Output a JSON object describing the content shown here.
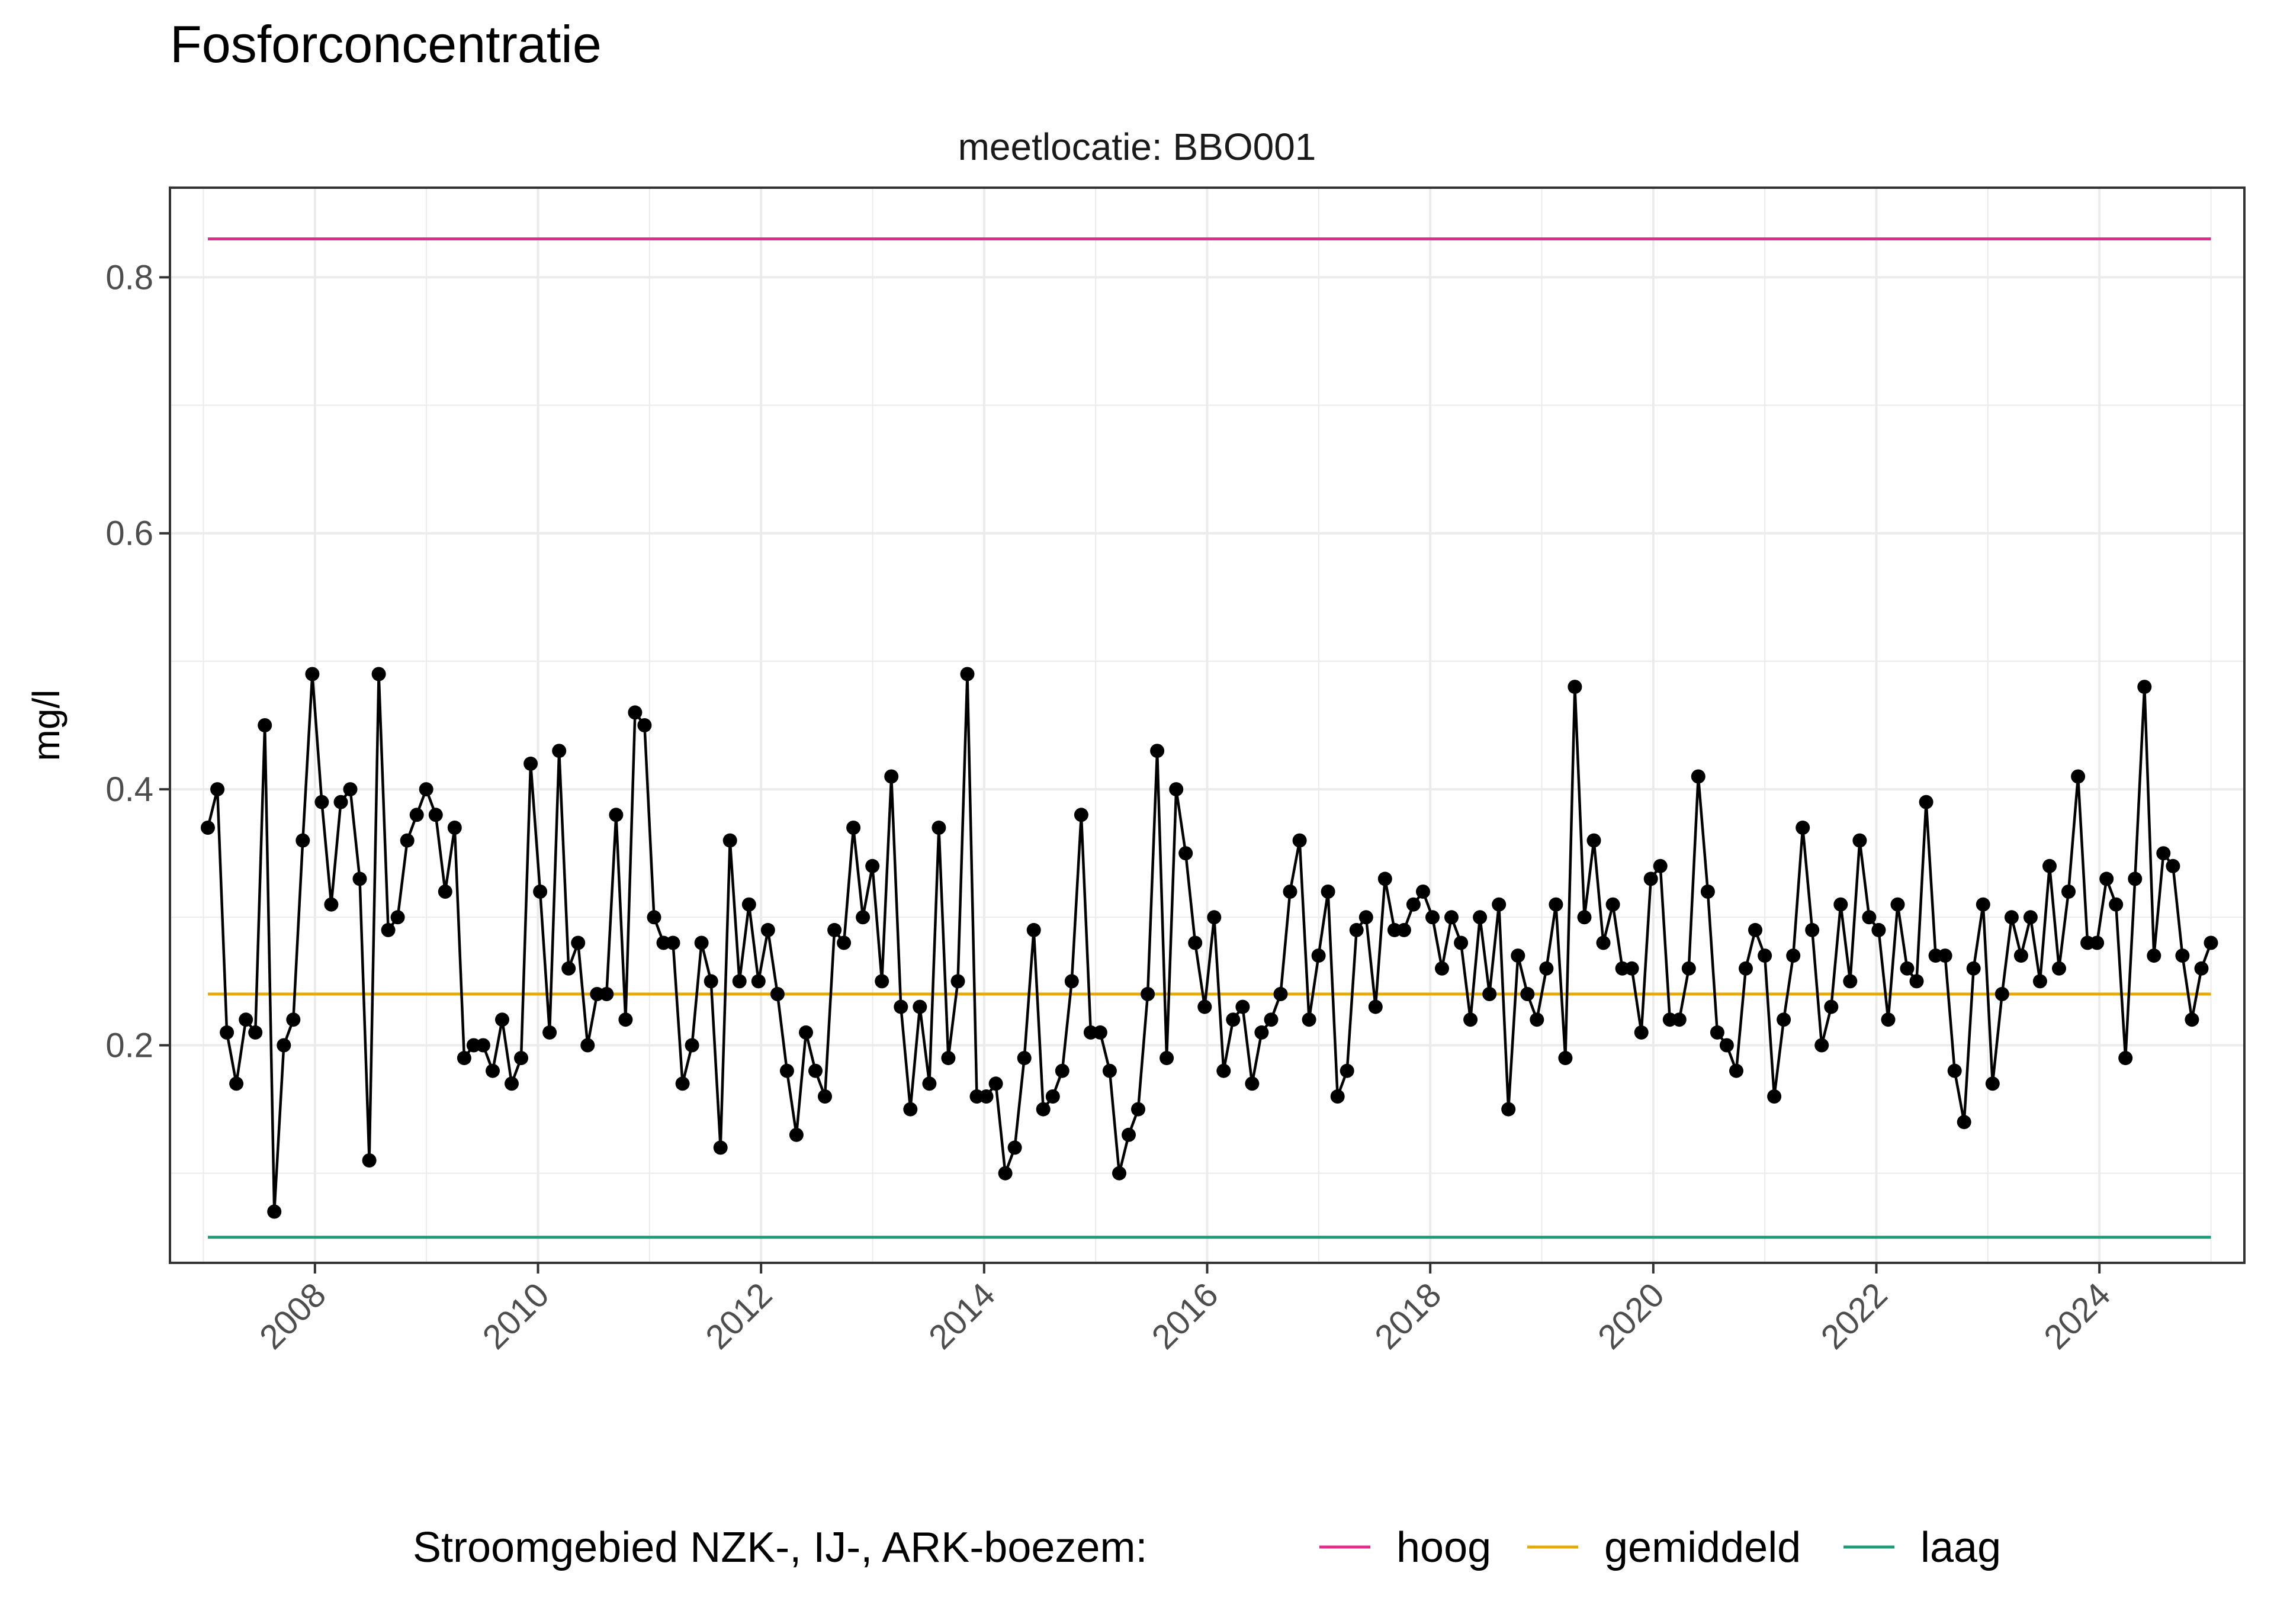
{
  "title": "Fosforconcentratie",
  "colors": {
    "hoog": "#e7298a",
    "gemiddeld": "#e6ab02",
    "laag": "#1b9e77",
    "series": "#000000",
    "grid": "#ebebeb"
  },
  "chart_data": {
    "type": "line",
    "title": "Fosforconcentratie",
    "facet_label": "meetlocatie: BBO001",
    "xlabel": "",
    "ylabel": "mg/l",
    "ylim": [
      0.03,
      0.87
    ],
    "xlim": [
      2006.7,
      2025.3
    ],
    "x_ticks": [
      "2008",
      "2010",
      "2012",
      "2014",
      "2016",
      "2018",
      "2020",
      "2022",
      "2024"
    ],
    "y_ticks": [
      "0.2",
      "0.4",
      "0.6",
      "0.8"
    ],
    "grid": true,
    "legend": {
      "position": "bottom",
      "title": "Stroomgebied NZK-, IJ-, ARK-boezem:",
      "entries": [
        {
          "key": "hoog",
          "label": "hoog",
          "color": "#e7298a"
        },
        {
          "key": "gemiddeld",
          "label": "gemiddeld",
          "color": "#e6ab02"
        },
        {
          "key": "laag",
          "label": "laag",
          "color": "#1b9e77"
        }
      ]
    },
    "reference_lines": [
      {
        "key": "hoog",
        "y": 0.83,
        "x_range": [
          2007.04,
          2025.0
        ]
      },
      {
        "key": "gemiddeld",
        "y": 0.24,
        "x_range": [
          2007.04,
          2025.0
        ]
      },
      {
        "key": "laag",
        "y": 0.05,
        "x_range": [
          2007.04,
          2025.0
        ]
      }
    ],
    "series": [
      {
        "values": [
          0.37,
          0.4,
          0.21,
          0.17,
          0.22,
          0.21,
          0.45,
          0.07,
          0.2,
          0.22,
          0.36,
          0.49,
          0.39,
          0.31,
          0.39,
          0.4,
          0.33,
          0.11,
          0.49,
          0.29,
          0.3,
          0.36,
          0.38,
          0.4,
          0.38,
          0.32,
          0.37,
          0.19,
          0.2,
          0.2,
          0.18,
          0.22,
          0.17,
          0.19,
          0.42,
          0.32,
          0.21,
          0.43,
          0.26,
          0.28,
          0.2,
          0.24,
          0.24,
          0.38,
          0.22,
          0.46,
          0.45,
          0.3,
          0.28,
          0.28,
          0.17,
          0.2,
          0.28,
          0.25,
          0.12,
          0.36,
          0.25,
          0.31,
          0.25,
          0.29,
          0.24,
          0.18,
          0.13,
          0.21,
          0.18,
          0.16,
          0.29,
          0.28,
          0.37,
          0.3,
          0.34,
          0.25,
          0.41,
          0.23,
          0.15,
          0.23,
          0.17,
          0.37,
          0.19,
          0.25,
          0.49,
          0.16,
          0.16,
          0.17,
          0.1,
          0.12,
          0.19,
          0.29,
          0.15,
          0.16,
          0.18,
          0.25,
          0.38,
          0.21,
          0.21,
          0.18,
          0.1,
          0.13,
          0.15,
          0.24,
          0.43,
          0.19,
          0.4,
          0.35,
          0.28,
          0.23,
          0.3,
          0.18,
          0.22,
          0.23,
          0.17,
          0.21,
          0.22,
          0.24,
          0.32,
          0.36,
          0.22,
          0.27,
          0.32,
          0.16,
          0.18,
          0.29,
          0.3,
          0.23,
          0.33,
          0.29,
          0.29,
          0.31,
          0.32,
          0.3,
          0.26,
          0.3,
          0.28,
          0.22,
          0.3,
          0.24,
          0.31,
          0.15,
          0.27,
          0.24,
          0.22,
          0.26,
          0.31,
          0.19,
          0.48,
          0.3,
          0.36,
          0.28,
          0.31,
          0.26,
          0.26,
          0.21,
          0.33,
          0.34,
          0.22,
          0.22,
          0.26,
          0.41,
          0.32,
          0.21,
          0.2,
          0.18,
          0.26,
          0.29,
          0.27,
          0.16,
          0.22,
          0.27,
          0.37,
          0.29,
          0.2,
          0.23,
          0.31,
          0.25,
          0.36,
          0.3,
          0.29,
          0.22,
          0.31,
          0.26,
          0.25,
          0.39,
          0.27,
          0.27,
          0.18,
          0.14,
          0.26,
          0.31,
          0.17,
          0.24,
          0.3,
          0.27,
          0.3,
          0.25,
          0.34,
          0.26,
          0.32,
          0.41,
          0.28,
          0.28,
          0.33,
          0.31,
          0.19,
          0.33,
          0.48,
          0.27,
          0.35,
          0.34,
          0.27,
          0.22,
          0.26,
          0.28
        ]
      }
    ]
  }
}
